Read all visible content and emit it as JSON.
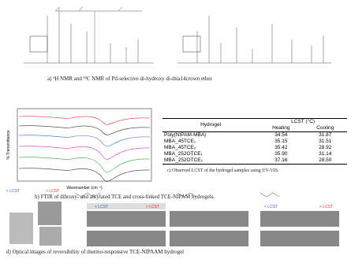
{
  "panel_a": {
    "caption": "a) ¹H NMR and ¹³C NMR  of Pd-selective di-hydroxy di-thia14crown ether"
  },
  "panel_b": {
    "y_label": "% Transmittance",
    "x_label": "Wavenumber (cm⁻¹)",
    "caption": "b) FTIR of dihroxy- and alkylated TCE and cross-linked TCE-NIPAM hydrogels."
  },
  "panel_c": {
    "table": {
      "header": [
        "Hydrogel",
        "LCST (°C)"
      ],
      "subheader": [
        "Heating",
        "Cooling"
      ],
      "rows": [
        [
          "Poly(NIPAM-MBA)",
          "34.54",
          "31.87"
        ],
        [
          "MBA_45TCE₁",
          "35.15",
          "31.51"
        ],
        [
          "MBA_45TCE₂",
          "35.42",
          "28.92"
        ],
        [
          "MBA_252OTCE₁",
          "35.90",
          "31.14"
        ],
        [
          "MBA_252OTCE₂",
          "37.16",
          "28.50"
        ]
      ]
    },
    "caption": "c) Observed LCST of the hydrogel samples using UV-VIS."
  },
  "panel_d": {
    "labels": [
      "< LCST",
      "> LCST",
      "< LCST",
      "> LCST",
      "< LCST",
      "> LCST"
    ],
    "caption": "d) Optical images  of reversibility of thermo-responsive TCE-NIPAAM hydrogel"
  }
}
